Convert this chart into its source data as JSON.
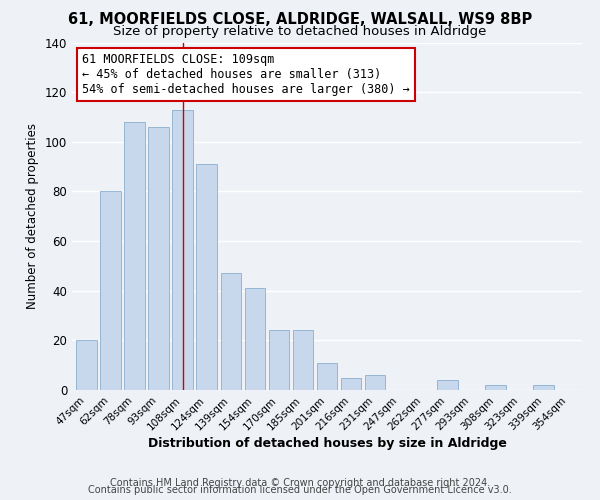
{
  "title1": "61, MOORFIELDS CLOSE, ALDRIDGE, WALSALL, WS9 8BP",
  "title2": "Size of property relative to detached houses in Aldridge",
  "xlabel": "Distribution of detached houses by size in Aldridge",
  "ylabel": "Number of detached properties",
  "categories": [
    "47sqm",
    "62sqm",
    "78sqm",
    "93sqm",
    "108sqm",
    "124sqm",
    "139sqm",
    "154sqm",
    "170sqm",
    "185sqm",
    "201sqm",
    "216sqm",
    "231sqm",
    "247sqm",
    "262sqm",
    "277sqm",
    "293sqm",
    "308sqm",
    "323sqm",
    "339sqm",
    "354sqm"
  ],
  "values": [
    20,
    80,
    108,
    106,
    113,
    91,
    47,
    41,
    24,
    24,
    11,
    5,
    6,
    0,
    0,
    4,
    0,
    2,
    0,
    2,
    0
  ],
  "bar_color": "#c8d8ec",
  "bar_edge_color": "#8aafd0",
  "highlight_index": 4,
  "highlight_bar_color": "#c8d8ec",
  "highlight_line_color": "#cc0000",
  "annotation_box_text": "61 MOORFIELDS CLOSE: 109sqm\n← 45% of detached houses are smaller (313)\n54% of semi-detached houses are larger (380) →",
  "annotation_box_edgecolor": "#cc0000",
  "annotation_box_facecolor": "#ffffff",
  "ylim": [
    0,
    140
  ],
  "yticks": [
    0,
    20,
    40,
    60,
    80,
    100,
    120,
    140
  ],
  "footer1": "Contains HM Land Registry data © Crown copyright and database right 2024.",
  "footer2": "Contains public sector information licensed under the Open Government Licence v3.0.",
  "background_color": "#eef2f7",
  "grid_color": "#ffffff",
  "title_fontsize": 10.5,
  "subtitle_fontsize": 9.5,
  "annotation_fontsize": 8.5,
  "footer_fontsize": 7
}
